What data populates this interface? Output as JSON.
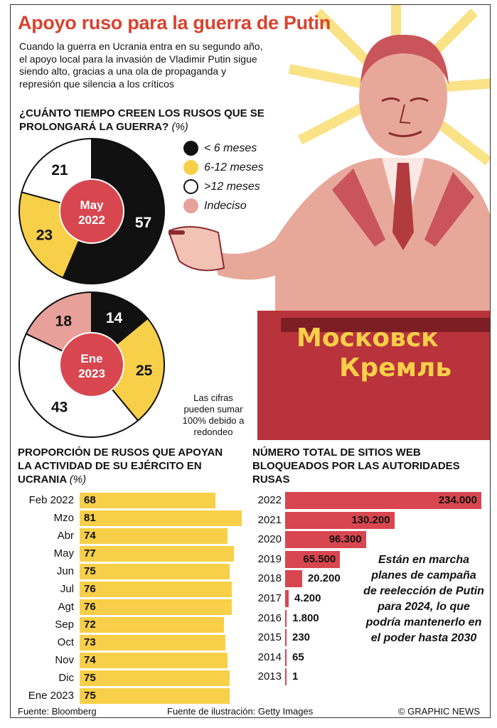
{
  "title": "Apoyo ruso para la guerra de Putin",
  "intro": "Cuando la guerra en Ucrania entra en su segundo año, el apoyo local para la invasión de Vladimir Putin sigue siendo alto, gracias a una ola de propaganda y represión que silencia a los críticos",
  "colors": {
    "accent": "#d8432f",
    "black": "#111111",
    "yellow": "#f8cf48",
    "white": "#ffffff",
    "pink": "#e8a09a",
    "red": "#d8464f"
  },
  "illustration": {
    "sign_line1": "Московск",
    "sign_line2": "Кремль"
  },
  "chart_data": [
    {
      "type": "pie",
      "title": "¿CUÁNTO TIEMPO CREEN LOS RUSOS QUE SE PROLONGARÁ LA GUERRA?",
      "unit": "(%)",
      "legend": [
        {
          "label": "< 6 meses",
          "color": "#111111"
        },
        {
          "label": "6-12 meses",
          "color": "#f8cf48"
        },
        {
          "label": ">12 meses",
          "color": "#ffffff"
        },
        {
          "label": "Indeciso",
          "color": "#e8a09a"
        }
      ],
      "pies": [
        {
          "center_label_1": "May",
          "center_label_2": "2022",
          "slices": [
            {
              "label": "57",
              "value": 57,
              "color": "#111111",
              "text_color": "#ffffff"
            },
            {
              "label": "23",
              "value": 23,
              "color": "#f8cf48",
              "text_color": "#111111"
            },
            {
              "label": "21",
              "value": 21,
              "color": "#ffffff",
              "text_color": "#111111"
            }
          ]
        },
        {
          "center_label_1": "Ene",
          "center_label_2": "2023",
          "slices": [
            {
              "label": "14",
              "value": 14,
              "color": "#111111",
              "text_color": "#ffffff"
            },
            {
              "label": "25",
              "value": 25,
              "color": "#f8cf48",
              "text_color": "#111111"
            },
            {
              "label": "43",
              "value": 43,
              "color": "#ffffff",
              "text_color": "#111111"
            },
            {
              "label": "18",
              "value": 18,
              "color": "#e8a09a",
              "text_color": "#111111"
            }
          ]
        }
      ],
      "note": "Las cifras pueden sumar 100% debido a redondeo"
    },
    {
      "type": "bar",
      "title": "PROPORCIÓN DE RUSOS QUE APOYAN LA ACTIVIDAD DE SU EJÉRCITO EN UCRANIA",
      "unit": "(%)",
      "categories": [
        "Feb 2022",
        "Mzo",
        "Abr",
        "May",
        "Jun",
        "Jul",
        "Agt",
        "Sep",
        "Oct",
        "Nov",
        "Dic",
        "Ene 2023"
      ],
      "values": [
        68,
        81,
        74,
        77,
        75,
        76,
        76,
        72,
        73,
        74,
        75,
        75
      ],
      "labels": [
        "68",
        "81",
        "74",
        "77",
        "75",
        "76",
        "76",
        "72",
        "73",
        "74",
        "75",
        "75"
      ]
    },
    {
      "type": "bar",
      "title": "NÚMERO TOTAL DE SITIOS WEB BLOQUEADOS POR LAS AUTORIDADES RUSAS",
      "categories": [
        "2022",
        "2021",
        "2020",
        "2019",
        "2018",
        "2017",
        "2016",
        "2015",
        "2014",
        "2013"
      ],
      "values": [
        234000,
        130200,
        96300,
        65500,
        20200,
        4200,
        1800,
        230,
        65,
        1
      ],
      "labels": [
        "234.000",
        "130.200",
        "96.300",
        "65.500",
        "20.200",
        "4.200",
        "1.800",
        "230",
        "65",
        "1"
      ]
    }
  ],
  "callout": "Están en marcha planes de campaña de reelección de Putin para 2024, lo que podría mantenerlo en el poder hasta 2030",
  "footer": {
    "source": "Fuente: Bloomberg",
    "illustration_source": "Fuente de ilustración: Getty Images",
    "credit": "© GRAPHIC NEWS"
  }
}
